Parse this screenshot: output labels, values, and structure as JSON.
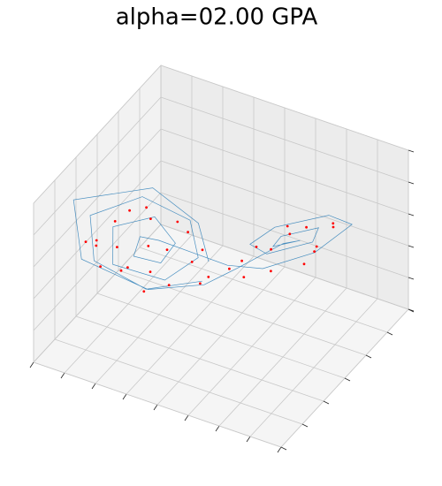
{
  "chart_data": {
    "type": "line3d",
    "title": "alpha=02.00 GPA",
    "xlim": [
      -20,
      20
    ],
    "ylim": [
      -30,
      30
    ],
    "zlim": [
      0,
      50
    ],
    "xticks": [
      -20,
      -15,
      -10,
      -5,
      0,
      5,
      10,
      15,
      20
    ],
    "yticks": [
      -30,
      -20,
      -10,
      0,
      10,
      20,
      30
    ],
    "zticks": [
      0,
      10,
      20,
      30,
      40,
      50
    ],
    "grid": true,
    "series": [
      {
        "kind": "line",
        "color": "#1f77b4",
        "x": [
          -2,
          -8,
          -14,
          -16,
          -11,
          -5,
          -3,
          -6,
          -12,
          -13,
          -9,
          -6,
          -7,
          -10,
          -10,
          -8,
          -4,
          0,
          4,
          10,
          15,
          14,
          8,
          4,
          5,
          10,
          12,
          8,
          6,
          9,
          8,
          3,
          -1,
          -7,
          -15,
          -18,
          -10,
          -4,
          -2
        ],
        "y": [
          -3,
          -12,
          -19,
          -15,
          -5,
          0,
          -2,
          -9,
          -16,
          -13,
          -5,
          -4,
          -8,
          -12,
          -9,
          -6,
          -1,
          3,
          8,
          15,
          18,
          10,
          2,
          2,
          7,
          14,
          11,
          5,
          7,
          11,
          6,
          -1,
          -5,
          -14,
          -22,
          -17,
          -3,
          1,
          0
        ],
        "z": [
          18,
          18,
          28,
          38,
          40,
          33,
          24,
          20,
          26,
          35,
          35,
          28,
          24,
          27,
          31,
          29,
          24,
          20,
          18,
          22,
          32,
          40,
          38,
          30,
          24,
          26,
          34,
          33,
          27,
          28,
          30,
          24,
          19,
          20,
          30,
          43,
          42,
          32,
          22
        ]
      },
      {
        "kind": "scatter",
        "color": "#ff0000",
        "x": [
          -12,
          -10,
          -14,
          -6,
          -8,
          -11,
          -15,
          -5,
          -9,
          -13,
          -7,
          -4,
          -10,
          -12,
          -3,
          -1,
          2,
          5,
          7,
          9,
          11,
          13,
          6,
          8,
          10,
          12,
          4,
          3,
          -2,
          -6,
          -8,
          -14,
          -16,
          -11,
          1,
          14
        ],
        "y": [
          -14,
          -6,
          -18,
          -3,
          -10,
          -15,
          -20,
          -1,
          -8,
          -12,
          -5,
          -2,
          -4,
          -9,
          0,
          -3,
          4,
          9,
          12,
          14,
          13,
          15,
          6,
          8,
          10,
          9,
          5,
          2,
          -4,
          -7,
          -13,
          -16,
          -12,
          -11,
          1,
          12
        ],
        "z": [
          30,
          38,
          32,
          34,
          22,
          24,
          34,
          30,
          28,
          36,
          26,
          22,
          33,
          20,
          25,
          20,
          22,
          24,
          28,
          30,
          26,
          32,
          20,
          34,
          22,
          28,
          27,
          19,
          18,
          17,
          18,
          24,
          28,
          40,
          21,
          36
        ]
      }
    ]
  }
}
